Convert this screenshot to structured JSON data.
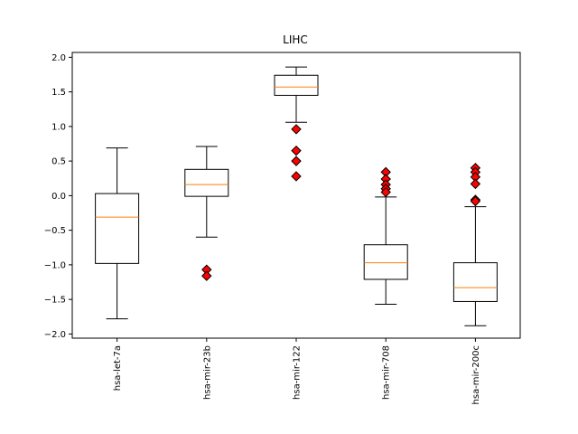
{
  "chart_data": {
    "type": "boxplot",
    "title": "LIHC",
    "xlabel": "",
    "ylabel": "",
    "ylim": [
      -2.06,
      2.07
    ],
    "yticks": [
      -2.0,
      -1.5,
      -1.0,
      -0.5,
      0.0,
      0.5,
      1.0,
      1.5,
      2.0
    ],
    "ytick_labels": [
      "−2.0",
      "−1.5",
      "−1.0",
      "−0.5",
      "0.0",
      "0.5",
      "1.0",
      "1.5",
      "2.0"
    ],
    "grid": false,
    "box_color": "#000000",
    "median_color": "#ff7f0e",
    "outlier_color": "#ff0000",
    "categories": [
      "hsa-let-7a",
      "hsa-mir-23b",
      "hsa-mir-122",
      "hsa-mir-708",
      "hsa-mir-200c"
    ],
    "boxes": [
      {
        "label": "hsa-let-7a",
        "whisker_low": -1.78,
        "q1": -0.98,
        "median": -0.31,
        "q3": 0.03,
        "whisker_high": 0.69,
        "outliers": []
      },
      {
        "label": "hsa-mir-23b",
        "whisker_low": -0.6,
        "q1": -0.01,
        "median": 0.16,
        "q3": 0.38,
        "whisker_high": 0.71,
        "outliers": [
          -1.07,
          -1.16
        ]
      },
      {
        "label": "hsa-mir-122",
        "whisker_low": 1.06,
        "q1": 1.45,
        "median": 1.57,
        "q3": 1.74,
        "whisker_high": 1.86,
        "outliers": [
          0.96,
          0.65,
          0.5,
          0.28
        ]
      },
      {
        "label": "hsa-mir-708",
        "whisker_low": -1.57,
        "q1": -1.21,
        "median": -0.97,
        "q3": -0.71,
        "whisker_high": -0.02,
        "outliers": [
          0.34,
          0.24,
          0.16,
          0.1,
          0.05
        ]
      },
      {
        "label": "hsa-mir-200c",
        "whisker_low": -1.88,
        "q1": -1.53,
        "median": -1.33,
        "q3": -0.97,
        "whisker_high": -0.16,
        "outliers": [
          0.4,
          0.34,
          0.27,
          0.17,
          -0.06,
          -0.08
        ]
      }
    ]
  }
}
